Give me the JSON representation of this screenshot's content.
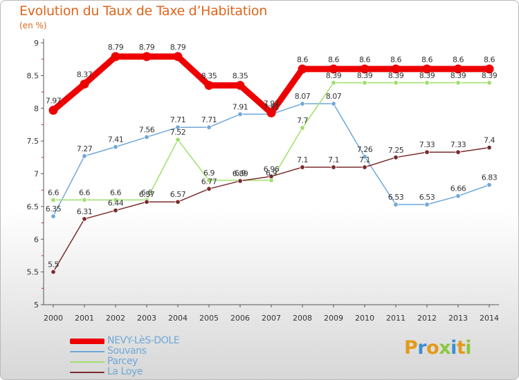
{
  "header": {
    "title": "Evolution du Taux de Taxe d’Habitation",
    "subtitle": "(en %)"
  },
  "logo": {
    "text": "Proxiti",
    "letters": [
      "P",
      "r",
      "o",
      "x",
      "i",
      "t",
      "i"
    ],
    "colors": [
      "#e39a1a",
      "#3a8fd3",
      "#e39a1a",
      "#8cc63f",
      "#3a8fd3",
      "#e39a1a",
      "#8cc63f"
    ]
  },
  "chart_data": {
    "type": "line",
    "title": "Evolution du Taux de Taxe d’Habitation",
    "ylabel": "(en %)",
    "xlabel": "",
    "categories": [
      "2000",
      "2001",
      "2002",
      "2003",
      "2004",
      "2005",
      "2006",
      "2007",
      "2008",
      "2009",
      "2010",
      "2011",
      "2012",
      "2013",
      "2014"
    ],
    "ylim": [
      5,
      9
    ],
    "yticks": [
      "5",
      "5.5",
      "6",
      "6.5",
      "7",
      "7.5",
      "8",
      "8.5",
      "9"
    ],
    "grid": false,
    "series": [
      {
        "name": "NEVY-LèS-DOLE",
        "color": "#ee0000",
        "values": [
          7.97,
          8.37,
          8.79,
          8.79,
          8.79,
          8.35,
          8.35,
          7.93,
          8.6,
          8.6,
          8.6,
          8.6,
          8.6,
          8.6,
          8.6
        ],
        "labels": [
          "7.97",
          "8.37",
          "8.79",
          "8.79",
          "8.79",
          "8.35",
          "8.35",
          "7.93",
          "8.6",
          "8.6",
          "8.6",
          "8.6",
          "8.6",
          "8.6",
          "8.6"
        ]
      },
      {
        "name": "Souvans",
        "color": "#6fa7d8",
        "values": [
          6.35,
          7.27,
          7.41,
          7.56,
          7.71,
          7.71,
          7.91,
          7.91,
          8.07,
          8.07,
          7.26,
          6.53,
          6.53,
          6.66,
          6.83
        ],
        "labels": [
          "6.35",
          "7.27",
          "7.41",
          "7.56",
          "7.71",
          "7.71",
          "7.91",
          "7.91",
          "8.07",
          "8.07",
          "7.26",
          "6.53",
          "6.53",
          "6.66",
          "6.83"
        ]
      },
      {
        "name": "Parcey",
        "color": "#9ee06a",
        "values": [
          6.6,
          6.6,
          6.6,
          6.6,
          7.52,
          6.9,
          6.9,
          6.9,
          7.7,
          8.39,
          8.39,
          8.39,
          8.39,
          8.39,
          8.39
        ],
        "labels": [
          "6.6",
          "6.6",
          "6.6",
          "6.6",
          "7.52",
          "6.9",
          "6.9",
          "6.9",
          "7.7",
          "8.39",
          "8.39",
          "8.39",
          "8.39",
          "8.39",
          "8.39"
        ]
      },
      {
        "name": "La Loye",
        "color": "#7a2a2a",
        "values": [
          5.5,
          6.31,
          6.44,
          6.57,
          6.57,
          6.77,
          6.89,
          6.96,
          7.1,
          7.1,
          7.1,
          7.25,
          7.33,
          7.33,
          7.4
        ],
        "labels": [
          "5.5",
          "6.31",
          "6.44",
          "6.57",
          "6.57",
          "6.77",
          "6.89",
          "6.96",
          "7.1",
          "7.1",
          "7.1",
          "7.25",
          "7.33",
          "7.33",
          "7.4"
        ]
      }
    ]
  }
}
